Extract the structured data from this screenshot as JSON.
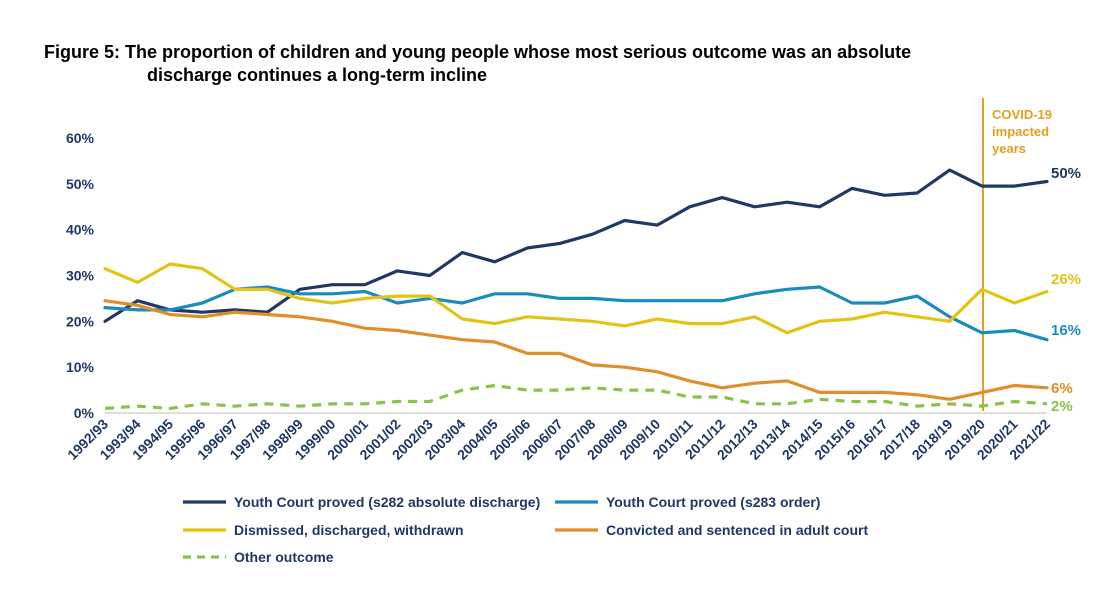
{
  "title_line1": "Figure 5: The proportion of children and young people whose most serious outcome was an absolute",
  "title_line2": "discharge continues a long-term incline",
  "chart_data": {
    "type": "line",
    "title": "Figure 5: The proportion of children and young people whose most serious outcome was an absolute discharge continues a long-term incline",
    "x": [
      "1992/93",
      "1993/94",
      "1994/95",
      "1995/96",
      "1996/97",
      "1997/98",
      "1998/99",
      "1999/00",
      "2000/01",
      "2001/02",
      "2002/03",
      "2003/04",
      "2004/05",
      "2005/06",
      "2006/07",
      "2007/08",
      "2008/09",
      "2009/10",
      "2010/11",
      "2011/12",
      "2012/13",
      "2013/14",
      "2014/15",
      "2015/16",
      "2016/17",
      "2017/18",
      "2018/19",
      "2019/20",
      "2020/21",
      "2021/22"
    ],
    "ylim": [
      0,
      60
    ],
    "yticks": [
      "0%",
      "10%",
      "20%",
      "30%",
      "40%",
      "50%",
      "60%"
    ],
    "grid": false,
    "legend_position": "bottom",
    "series": [
      {
        "name": "Youth Court proved (s282 absolute discharge)",
        "color": "#203864",
        "style": "solid",
        "end_label": "50%",
        "values": [
          20,
          24.5,
          22.5,
          22,
          22.5,
          22,
          27,
          28,
          28,
          31,
          30,
          35,
          33,
          36,
          37,
          39,
          42,
          41,
          45,
          47,
          45,
          46,
          45,
          49,
          47.5,
          48,
          53,
          49.5,
          49.5,
          50.5
        ]
      },
      {
        "name": "Youth Court proved (s283 order)",
        "color": "#1b8bbd",
        "style": "solid",
        "end_label": "16%",
        "values": [
          23,
          22.5,
          22.5,
          24,
          27,
          27.5,
          26,
          26,
          26.5,
          24,
          25,
          24,
          26,
          26,
          25,
          25,
          24.5,
          24.5,
          24.5,
          24.5,
          26,
          27,
          27.5,
          24,
          24,
          25.5,
          21,
          17.5,
          18,
          16
        ]
      },
      {
        "name": "Dismissed, discharged, withdrawn",
        "color": "#e2c416",
        "style": "solid",
        "end_label": "26%",
        "values": [
          31.5,
          28.5,
          32.5,
          31.5,
          27,
          27,
          25,
          24,
          25,
          25.5,
          25.5,
          20.5,
          19.5,
          21,
          20.5,
          20,
          19,
          20.5,
          19.5,
          19.5,
          21,
          17.5,
          20,
          20.5,
          22,
          21,
          20,
          27,
          24,
          26.5
        ]
      },
      {
        "name": "Convicted and sentenced in adult court",
        "color": "#e08e2a",
        "style": "solid",
        "end_label": "6%",
        "values": [
          24.5,
          23.5,
          21.5,
          21,
          22,
          21.5,
          21,
          20,
          18.5,
          18,
          17,
          16,
          15.5,
          13,
          13,
          10.5,
          10,
          9,
          7,
          5.5,
          6.5,
          7,
          4.5,
          4.5,
          4.5,
          4,
          3,
          4.5,
          6,
          5.5
        ]
      },
      {
        "name": "Other outcome",
        "color": "#8dc14e",
        "style": "dashed",
        "end_label": "2%",
        "values": [
          1,
          1.5,
          1,
          2,
          1.5,
          2,
          1.5,
          2,
          2,
          2.5,
          2.5,
          5,
          6,
          5,
          5,
          5.5,
          5,
          5,
          3.5,
          3.5,
          2,
          2,
          3,
          2.5,
          2.5,
          1.5,
          2,
          1.5,
          2.5,
          2
        ]
      }
    ],
    "annotation": {
      "text": [
        "COVID-19",
        "impacted",
        "years"
      ],
      "color": "#e0a020",
      "at": "2019/20"
    }
  }
}
